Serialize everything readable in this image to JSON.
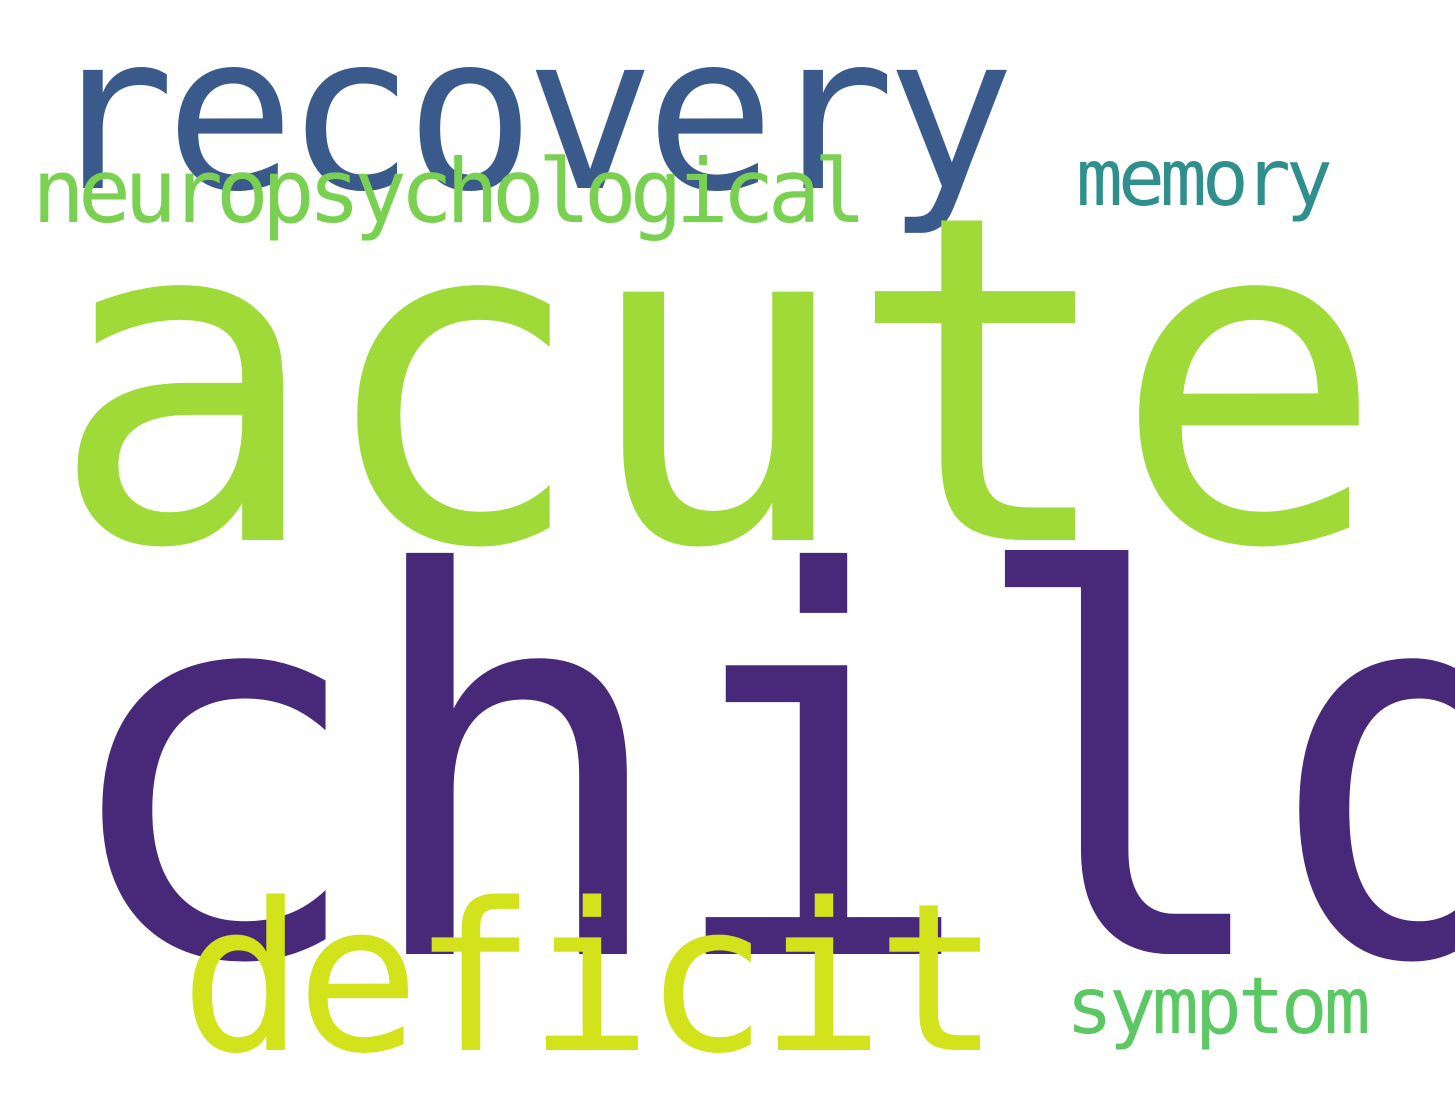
{
  "cloud": {
    "background": "#ffffff",
    "words": [
      {
        "text": "child",
        "color": "#482878"
      },
      {
        "text": "acute",
        "color": "#A0DA39"
      },
      {
        "text": "recovery",
        "color": "#3B5A8C"
      },
      {
        "text": "deficit",
        "color": "#D2E21B"
      },
      {
        "text": "neuropsychological",
        "color": "#7AD151"
      },
      {
        "text": "memory",
        "color": "#2E8F8C"
      },
      {
        "text": "symptom",
        "color": "#5CC863"
      }
    ]
  }
}
